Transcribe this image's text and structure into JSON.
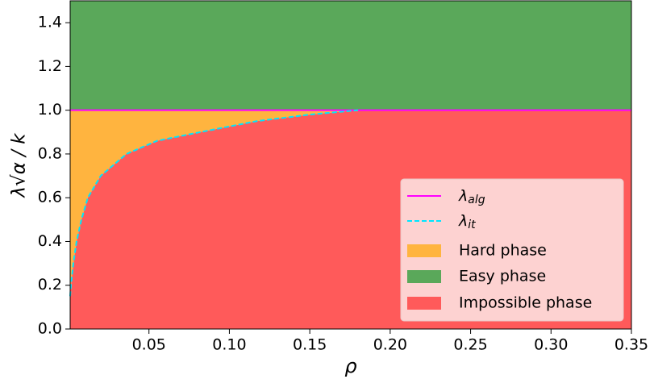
{
  "chart_data": {
    "type": "phase",
    "x_label": "ρ",
    "y_label": "λ√α / k",
    "xlim": [
      0.001,
      0.35
    ],
    "ylim": [
      0,
      1.5
    ],
    "xticks": [
      0.05,
      {
        "value": 0.1,
        "label": "0.10"
      },
      0.15,
      {
        "value": 0.2,
        "label": "0.20"
      },
      0.25,
      {
        "value": 0.3,
        "label": "0.30"
      },
      0.35
    ],
    "yticks": [
      {
        "value": 0,
        "label": "0.0"
      },
      0.2,
      0.4,
      0.6,
      0.8,
      {
        "value": 1,
        "label": "1.0"
      },
      1.2,
      1.4
    ],
    "series": [
      {
        "name": "λ",
        "subscript": "alg",
        "color": "#ff00ff",
        "dash": false,
        "x": [
          0.001,
          0.35
        ],
        "values": [
          1,
          1
        ]
      },
      {
        "name": "λ",
        "subscript": "it",
        "color": "#00e5ff",
        "dash": true,
        "x": [
          0.001,
          0.0015,
          0.003,
          0.005,
          0.008,
          0.012,
          0.02,
          0.036,
          0.055,
          0.082,
          0.117,
          0.15,
          0.18
        ],
        "values": [
          0.15,
          0.2,
          0.3,
          0.4,
          0.5,
          0.6,
          0.7,
          0.8,
          0.86,
          0.9,
          0.95,
          0.98,
          1.0
        ]
      }
    ],
    "regions": [
      {
        "name": "Hard phase",
        "color": "#ffb43f"
      },
      {
        "name": "Easy phase",
        "color": "#5aa85a"
      },
      {
        "name": "Impossible phase",
        "color": "#ff5a5a"
      }
    ],
    "legend": "lower right"
  }
}
